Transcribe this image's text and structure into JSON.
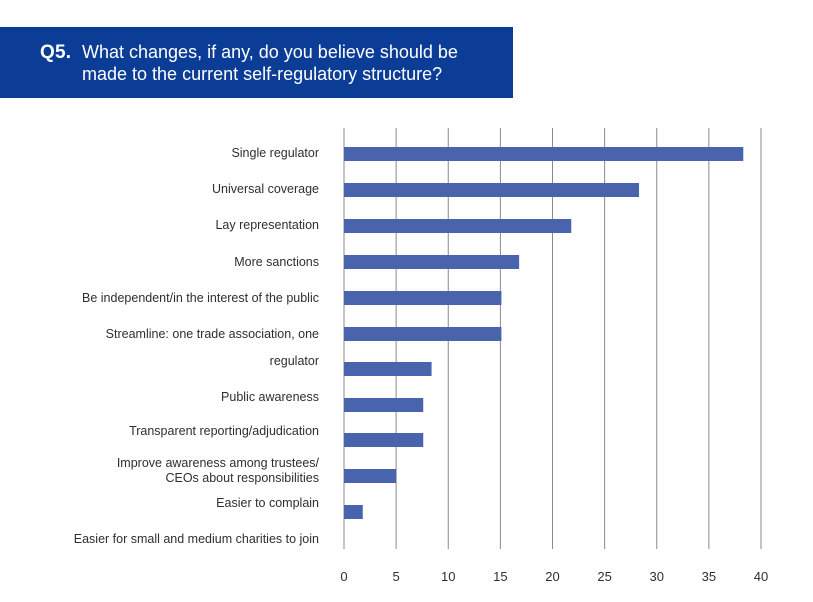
{
  "header": {
    "q_label": "Q5.",
    "title": "What changes, if any, do you believe should be made to the current self-regulatory structure?"
  },
  "chart_data": {
    "type": "bar",
    "orientation": "horizontal",
    "title": "",
    "xlabel": "",
    "ylabel": "",
    "xlim": [
      0,
      40
    ],
    "xticks": [
      0,
      5,
      10,
      15,
      20,
      25,
      30,
      35,
      40
    ],
    "grid": "vertical",
    "bar_color": "#4a63ad",
    "grid_color": "#8a8a8a",
    "categories": [
      "Single regulator",
      "Universal coverage",
      "Lay representation",
      "More sanctions",
      "Be independent/in the interest of the public",
      "Streamline: one trade association, one regulator",
      "Public awareness",
      "Transparent reporting/adjudication",
      "Improve awareness among trustees/ CEOs about responsibilities",
      "Easier to complain",
      "Easier for small and medium charities to join"
    ],
    "values": [
      38.3,
      28.3,
      21.8,
      16.8,
      15.1,
      15.1,
      8.4,
      7.6,
      7.6,
      5.0,
      1.8
    ]
  },
  "colors": {
    "header_bg": "#0b3d97",
    "header_text": "#ffffff",
    "bar": "#4a63ad"
  }
}
